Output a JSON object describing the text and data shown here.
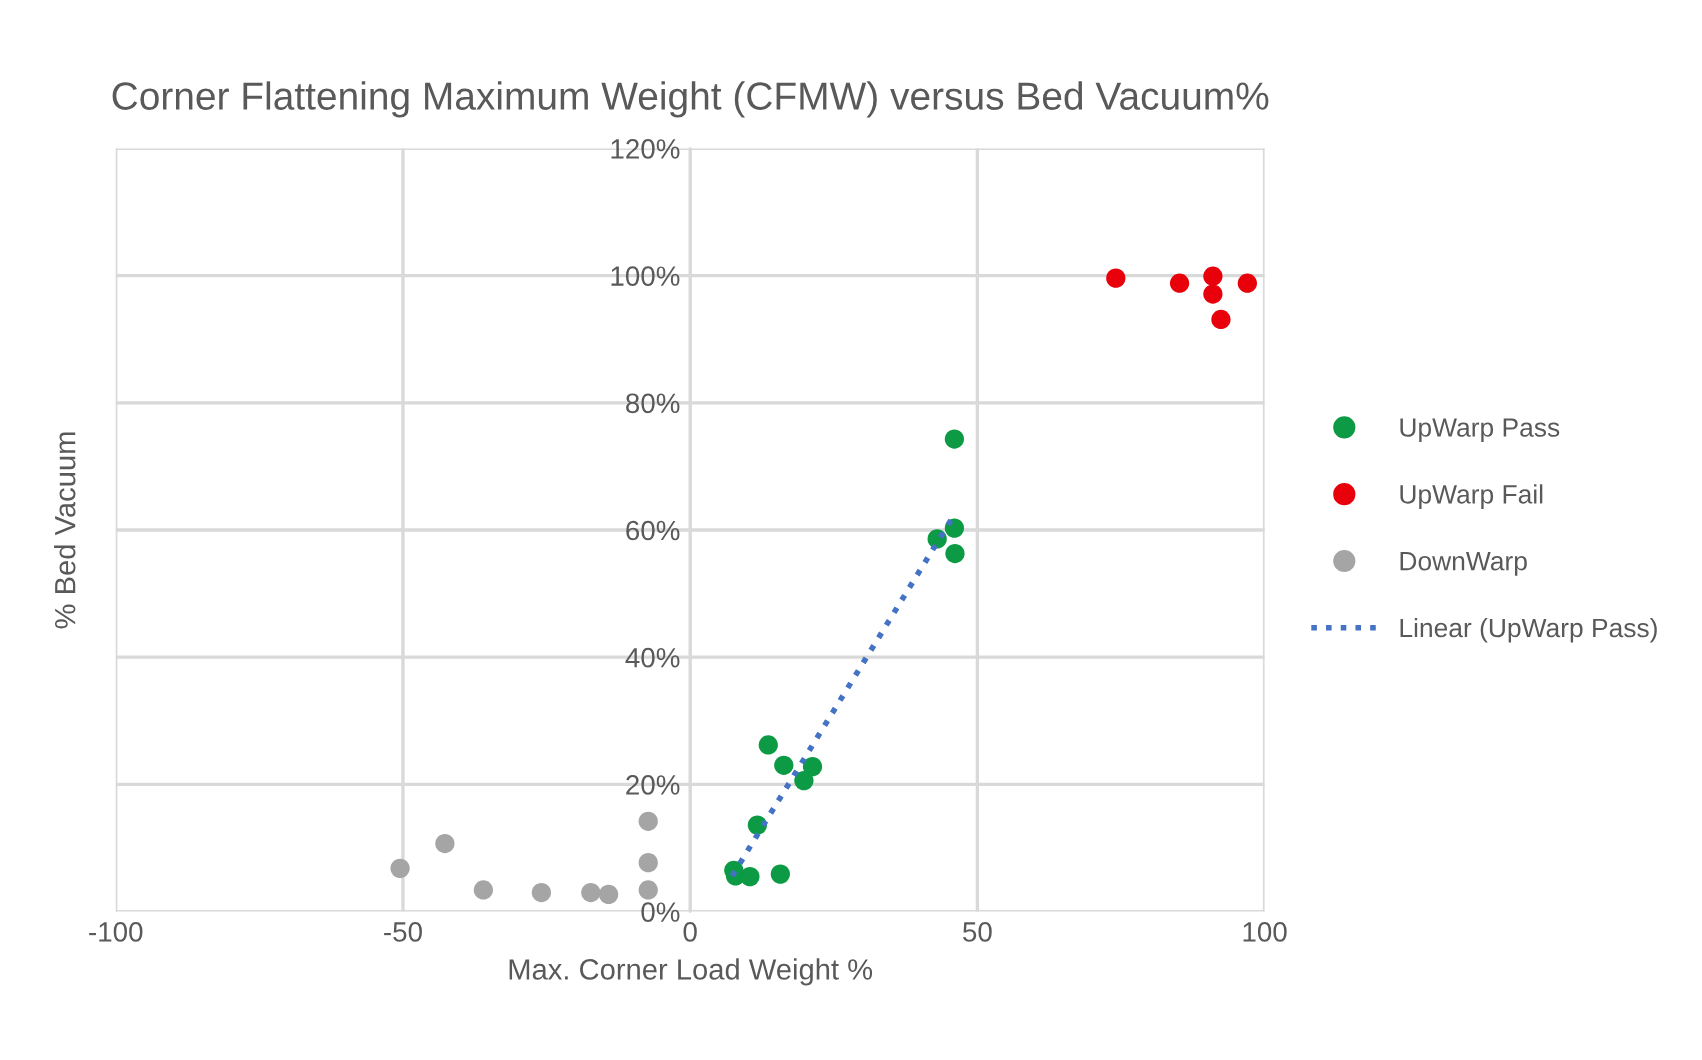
{
  "chart_data": {
    "type": "scatter",
    "title": "Corner Flattening Maximum Weight (CFMW) versus Bed Vacuum%",
    "xlabel": "Max. Corner Load Weight %",
    "ylabel": "% Bed Vacuum",
    "series": [
      {
        "name": "UpWarp Pass",
        "color": "#0c9a45",
        "x": [
          13.6,
          16.3,
          21.3,
          19.8,
          11.7,
          7.6,
          7.9,
          10.4,
          15.7,
          43,
          46,
          46.1,
          46
        ],
        "values": [
          26.2,
          23.0,
          22.8,
          20.6,
          13.6,
          6.5,
          5.6,
          5.5,
          5.9,
          58.6,
          60.3,
          56.3,
          74.3
        ]
      },
      {
        "name": "UpWarp Fail",
        "color": "#e8000b",
        "x": [
          74.1,
          85.2,
          91,
          91,
          92.4,
          97
        ],
        "values": [
          99.6,
          98.8,
          99.9,
          97.1,
          93.1,
          98.8
        ]
      },
      {
        "name": "DownWarp",
        "color": "#a5a5a5",
        "x": [
          -50.5,
          -42.7,
          -36,
          -25.9,
          -17.3,
          -14.2,
          -7.3,
          -7.3,
          -7.3
        ],
        "values": [
          6.8,
          10.7,
          3.4,
          3.0,
          3.0,
          2.7,
          14.2,
          7.7,
          3.4
        ]
      },
      {
        "name": "Linear (UpWarp Pass)",
        "type": "line",
        "line_style": "dotted",
        "marker": "none",
        "color": "#4472c4",
        "x": [
          7.3,
          45.9
        ],
        "values": [
          5.6,
          62.3
        ]
      }
    ],
    "marker": "circle",
    "grid": true,
    "legend": "right",
    "xlim": [
      -100,
      100
    ],
    "xticks": [
      -100,
      -50,
      0,
      50,
      100
    ],
    "ylim": [
      0,
      120
    ],
    "yticks": [
      {
        "value": 0,
        "label": "0%"
      },
      {
        "value": 20,
        "label": "20%"
      },
      {
        "value": 40,
        "label": "40%"
      },
      {
        "value": 60,
        "label": "60%"
      },
      {
        "value": 80,
        "label": "80%"
      },
      {
        "value": 100,
        "label": "100%"
      },
      {
        "value": 120,
        "label": "120%"
      }
    ]
  }
}
